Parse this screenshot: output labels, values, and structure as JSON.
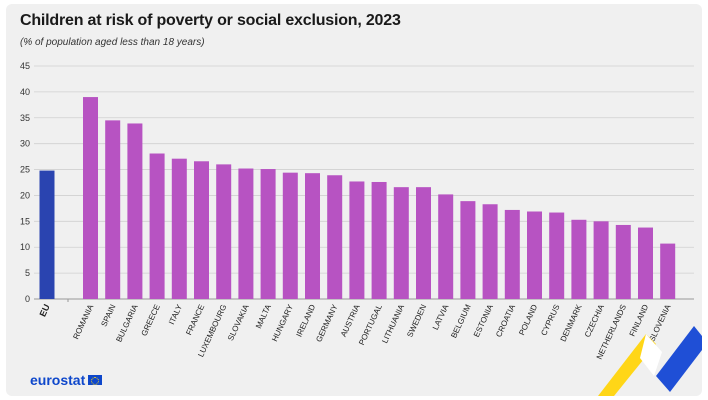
{
  "header": {
    "title": "Children at risk of poverty or social exclusion, 2023",
    "subtitle": "(% of population aged less than 18 years)"
  },
  "footer": {
    "logo_text": "eurostat"
  },
  "colors": {
    "eu_bar": "#2a44b0",
    "country_bar": "#b753c2",
    "grid": "#d0d0d0",
    "background": "#f0f0f0",
    "ribbon_yellow": "#ffd617",
    "ribbon_blue": "#1f4fd6",
    "ribbon_white": "#ffffff"
  },
  "chart_data": {
    "type": "bar",
    "title": "Children at risk of poverty or social exclusion, 2023",
    "subtitle": "(% of population aged less than 18 years)",
    "xlabel": "",
    "ylabel": "",
    "ylim": [
      0,
      45
    ],
    "yticks": [
      0,
      5,
      10,
      15,
      20,
      25,
      30,
      35,
      40,
      45
    ],
    "grid": true,
    "legend": "none",
    "categories": [
      "EU",
      "ROMANIA",
      "SPAIN",
      "BULGARIA",
      "GREECE",
      "ITALY",
      "FRANCE",
      "LUXEMBOURG",
      "SLOVAKIA",
      "MALTA",
      "HUNGARY",
      "IRELAND",
      "GERMANY",
      "AUSTRIA",
      "PORTUGAL",
      "LITHUANIA",
      "SWEDEN",
      "LATVIA",
      "BELGIUM",
      "ESTONIA",
      "CROATIA",
      "POLAND",
      "CYPRUS",
      "DENMARK",
      "CZECHIA",
      "NETHERLANDS",
      "FINLAND",
      "SLOVENIA"
    ],
    "values": [
      24.8,
      39.0,
      34.5,
      33.9,
      28.1,
      27.1,
      26.6,
      26.0,
      25.2,
      25.1,
      24.4,
      24.3,
      23.9,
      22.7,
      22.6,
      21.6,
      21.6,
      20.2,
      18.9,
      18.3,
      17.2,
      16.9,
      16.7,
      15.3,
      15.0,
      14.3,
      13.8,
      10.7
    ]
  }
}
